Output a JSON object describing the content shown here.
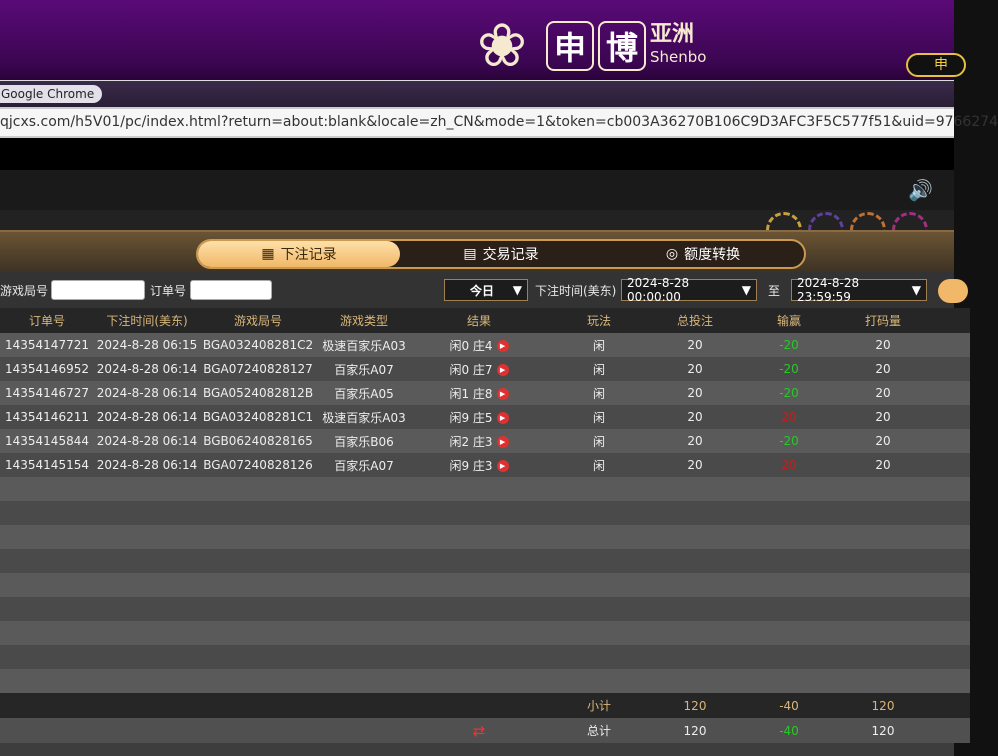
{
  "brand": {
    "char1": "申",
    "char2": "博",
    "cn": "亚洲",
    "en": "Shenbo",
    "lang_button": "申"
  },
  "browser": {
    "tooltip": "Google Chrome",
    "url": "qjcxs.com/h5V01/pc/index.html?return=about:blank&locale=zh_CN&mode=1&token=cb003A36270B106C9D3AFC3F5C577f51&uid=9766274"
  },
  "tabs": [
    {
      "label": "下注记录",
      "icon": "calendar-icon",
      "active": true
    },
    {
      "label": "交易记录",
      "icon": "clipboard-icon"
    },
    {
      "label": "额度转换",
      "icon": "coins-icon"
    }
  ],
  "filters": {
    "game_round_label": "游戏局号",
    "game_round_value": "",
    "order_label": "订单号",
    "order_value": "",
    "period": "今日",
    "time_label": "下注时间(美东)",
    "from": "2024-8-28 00:00:00",
    "to_label": "至",
    "to": "2024-8-28 23:59:59"
  },
  "columns": [
    "订单号",
    "下注时间(美东)",
    "游戏局号",
    "游戏类型",
    "结果",
    "玩法",
    "总投注",
    "输赢",
    "打码量"
  ],
  "rows": [
    {
      "order": "14354147721",
      "time": "2024-8-28 06:15",
      "round": "BGA032408281C2",
      "type": "极速百家乐A03",
      "result": "闲0 庄4",
      "play": "闲",
      "bet": "20",
      "win": "-20",
      "valid": "20"
    },
    {
      "order": "14354146952",
      "time": "2024-8-28 06:14",
      "round": "BGA07240828127",
      "type": "百家乐A07",
      "result": "闲0 庄7",
      "play": "闲",
      "bet": "20",
      "win": "-20",
      "valid": "20"
    },
    {
      "order": "14354146727",
      "time": "2024-8-28 06:14",
      "round": "BGA0524082812B",
      "type": "百家乐A05",
      "result": "闲1 庄8",
      "play": "闲",
      "bet": "20",
      "win": "-20",
      "valid": "20"
    },
    {
      "order": "14354146211",
      "time": "2024-8-28 06:14",
      "round": "BGA032408281C1",
      "type": "极速百家乐A03",
      "result": "闲9 庄5",
      "play": "闲",
      "bet": "20",
      "win": "20",
      "valid": "20"
    },
    {
      "order": "14354145844",
      "time": "2024-8-28 06:14",
      "round": "BGB06240828165",
      "type": "百家乐B06",
      "result": "闲2 庄3",
      "play": "闲",
      "bet": "20",
      "win": "-20",
      "valid": "20"
    },
    {
      "order": "14354145154",
      "time": "2024-8-28 06:14",
      "round": "BGA07240828126",
      "type": "百家乐A07",
      "result": "闲9 庄3",
      "play": "闲",
      "bet": "20",
      "win": "20",
      "valid": "20"
    }
  ],
  "subtotal": {
    "label": "小计",
    "bet": "120",
    "win": "-40",
    "valid": "120"
  },
  "total": {
    "label": "总计",
    "bet": "120",
    "win": "-40",
    "valid": "120"
  },
  "colors": {
    "loss": "#28c828",
    "win": "#c02020",
    "accent": "#f0b868"
  }
}
